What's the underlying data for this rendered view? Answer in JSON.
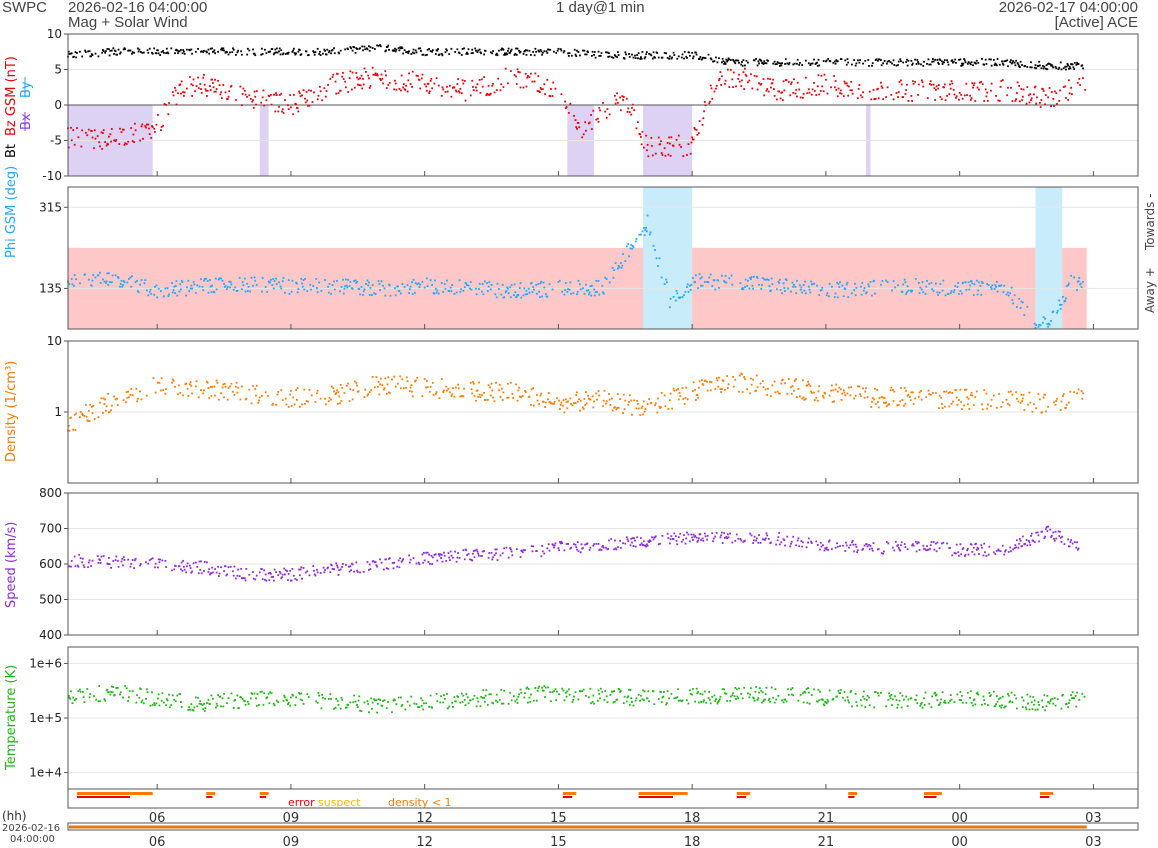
{
  "header": {
    "org": "SWPC",
    "start_time": "2026-02-16 04:00:00",
    "subtitle": "Mag + Solar Wind",
    "span": "1 day@1 min",
    "end_time": "2026-02-17 04:00:00",
    "source": "[Active] ACE"
  },
  "colors": {
    "bt": "#000000",
    "bz": "#e8000b",
    "bx": "#8c3cff",
    "by": "#1ea8ff",
    "phi": "#1ea8ff",
    "phi_towards": "#c8ecfa",
    "phi_away": "#ffc8c8",
    "bz_south": "#ddd2f4",
    "density": "#ff7a00",
    "speed": "#8f2bd9",
    "temperature": "#1fb614",
    "error": "#e8000b",
    "suspect": "#f5b800"
  },
  "chart_data": [
    {
      "type": "scatter",
      "panel": "mag",
      "ylabel_parts": [
        "Bt",
        "Bz GSM (nT)",
        "Bx",
        "By"
      ],
      "ylim": [
        -10,
        10
      ],
      "yticks": [
        "10",
        "5",
        "0",
        "-5",
        "-10"
      ],
      "series": [
        {
          "name": "Bt",
          "x": [
            4,
            5,
            6,
            7,
            8,
            9,
            10,
            11,
            12,
            13,
            14,
            15,
            16,
            17,
            18,
            19,
            20,
            21,
            22,
            23,
            24,
            25,
            26,
            26.8
          ],
          "y": [
            7,
            7.5,
            7.5,
            7.5,
            7.5,
            7.5,
            7.5,
            8,
            7.5,
            7.5,
            7.5,
            7.5,
            7,
            7,
            7,
            6,
            6,
            6,
            6,
            6,
            6,
            6,
            5.5,
            5.5
          ]
        },
        {
          "name": "Bz GSM",
          "x": [
            4,
            4.5,
            5,
            5.5,
            6,
            6.5,
            7,
            8,
            9,
            10,
            11,
            12,
            13,
            14,
            15,
            15.5,
            16,
            16.5,
            17,
            17.5,
            18,
            18.5,
            19,
            20,
            21,
            22,
            23,
            24,
            25,
            26,
            26.8
          ],
          "y": [
            -4.5,
            -5,
            -4.5,
            -4,
            -3,
            2,
            3,
            1,
            0,
            3,
            4,
            3,
            2,
            4,
            2,
            -4,
            -1,
            1,
            -6,
            -6,
            -5.5,
            3,
            4,
            2,
            3,
            2,
            2,
            2,
            2,
            1,
            3
          ]
        }
      ],
      "bz_south_intervals": [
        [
          4.0,
          5.9
        ],
        [
          8.3,
          8.5
        ],
        [
          15.2,
          15.8
        ],
        [
          16.9,
          18.0
        ],
        [
          21.9,
          22.0
        ]
      ]
    },
    {
      "type": "scatter",
      "panel": "phi",
      "ylabel": "Phi GSM (deg)",
      "right_labels": [
        "Towards -",
        "Away +"
      ],
      "ylim": [
        45,
        360
      ],
      "yticks": [
        "315",
        "135"
      ],
      "series": [
        {
          "name": "Phi GSM",
          "x": [
            4,
            5,
            6,
            7,
            8,
            9,
            10,
            11,
            12,
            13,
            14,
            15,
            16,
            17,
            17.5,
            18,
            19,
            20,
            21,
            22,
            23,
            24,
            25,
            25.7,
            26,
            26.5,
            26.8
          ],
          "y": [
            150,
            160,
            130,
            140,
            145,
            140,
            140,
            135,
            140,
            135,
            130,
            135,
            135,
            280,
            110,
            150,
            150,
            140,
            130,
            135,
            140,
            135,
            140,
            60,
            55,
            150,
            140
          ]
        }
      ],
      "towards_intervals": [
        [
          16.9,
          18.0
        ],
        [
          25.7,
          26.3
        ]
      ],
      "away_range": [
        4.0,
        26.85
      ]
    },
    {
      "type": "scatter",
      "panel": "density",
      "ylabel": "Density (1/cm³)",
      "yscale": "log",
      "ylim": [
        0.1,
        10
      ],
      "yticks": [
        "10",
        "1"
      ],
      "series": [
        {
          "name": "Density",
          "x": [
            4,
            5,
            6,
            7,
            8,
            9,
            10,
            11,
            12,
            13,
            14,
            15,
            16,
            17,
            18,
            19,
            20,
            21,
            22,
            23,
            24,
            25,
            26,
            26.8
          ],
          "y": [
            0.6,
            1.4,
            2.4,
            2.2,
            1.8,
            1.6,
            1.7,
            2.4,
            2.2,
            2.0,
            1.9,
            1.3,
            1.5,
            1.1,
            1.9,
            2.6,
            2.2,
            1.9,
            1.6,
            1.6,
            1.5,
            1.5,
            1.3,
            1.8
          ]
        }
      ]
    },
    {
      "type": "scatter",
      "panel": "speed",
      "ylabel": "Speed (km/s)",
      "ylim": [
        400,
        800
      ],
      "yticks": [
        "800",
        "700",
        "600",
        "500",
        "400"
      ],
      "series": [
        {
          "name": "Speed",
          "x": [
            4,
            5,
            6,
            7,
            8,
            9,
            10,
            11,
            12,
            13,
            14,
            15,
            16,
            17,
            18,
            19,
            20,
            21,
            22,
            23,
            24,
            25,
            26,
            26.8
          ],
          "y": [
            610,
            605,
            600,
            590,
            570,
            570,
            585,
            600,
            615,
            625,
            630,
            645,
            655,
            665,
            675,
            675,
            670,
            655,
            645,
            650,
            640,
            640,
            690,
            645
          ]
        }
      ]
    },
    {
      "type": "scatter",
      "panel": "temperature",
      "ylabel": "Temperature (K)",
      "yscale": "log",
      "ylim": [
        5000,
        2000000
      ],
      "yticks": [
        "1e+6",
        "1e+5",
        "1e+4"
      ],
      "series": [
        {
          "name": "Temperature",
          "x": [
            4,
            5,
            6,
            7,
            8,
            9,
            10,
            11,
            12,
            13,
            14,
            15,
            16,
            17,
            18,
            19,
            20,
            21,
            22,
            23,
            24,
            25,
            26,
            26.8
          ],
          "y": [
            250000,
            300000,
            220000,
            180000,
            220000,
            230000,
            200000,
            170000,
            200000,
            220000,
            260000,
            280000,
            250000,
            230000,
            250000,
            260000,
            270000,
            240000,
            220000,
            200000,
            240000,
            210000,
            190000,
            230000
          ]
        }
      ]
    }
  ],
  "quality": {
    "labels": [
      "error",
      "suspect",
      "density < 1"
    ],
    "density_lt1_intervals": [
      [
        4.2,
        5.9
      ],
      [
        7.1,
        7.3
      ],
      [
        8.3,
        8.5
      ],
      [
        15.1,
        15.4
      ],
      [
        16.8,
        17.9
      ],
      [
        19.0,
        19.3
      ],
      [
        21.5,
        21.7
      ],
      [
        23.2,
        23.6
      ],
      [
        25.8,
        26.1
      ]
    ]
  },
  "time_axis": {
    "label": "(hh)",
    "ticks": [
      {
        "hour": 6,
        "label": "06"
      },
      {
        "hour": 9,
        "label": "09"
      },
      {
        "hour": 12,
        "label": "12"
      },
      {
        "hour": 15,
        "label": "15"
      },
      {
        "hour": 18,
        "label": "18"
      },
      {
        "hour": 21,
        "label": "21"
      },
      {
        "hour": 24,
        "label": "00"
      },
      {
        "hour": 27,
        "label": "03"
      }
    ],
    "range_start_date": "2026-02-16",
    "range_start_time": "04:00:00"
  }
}
